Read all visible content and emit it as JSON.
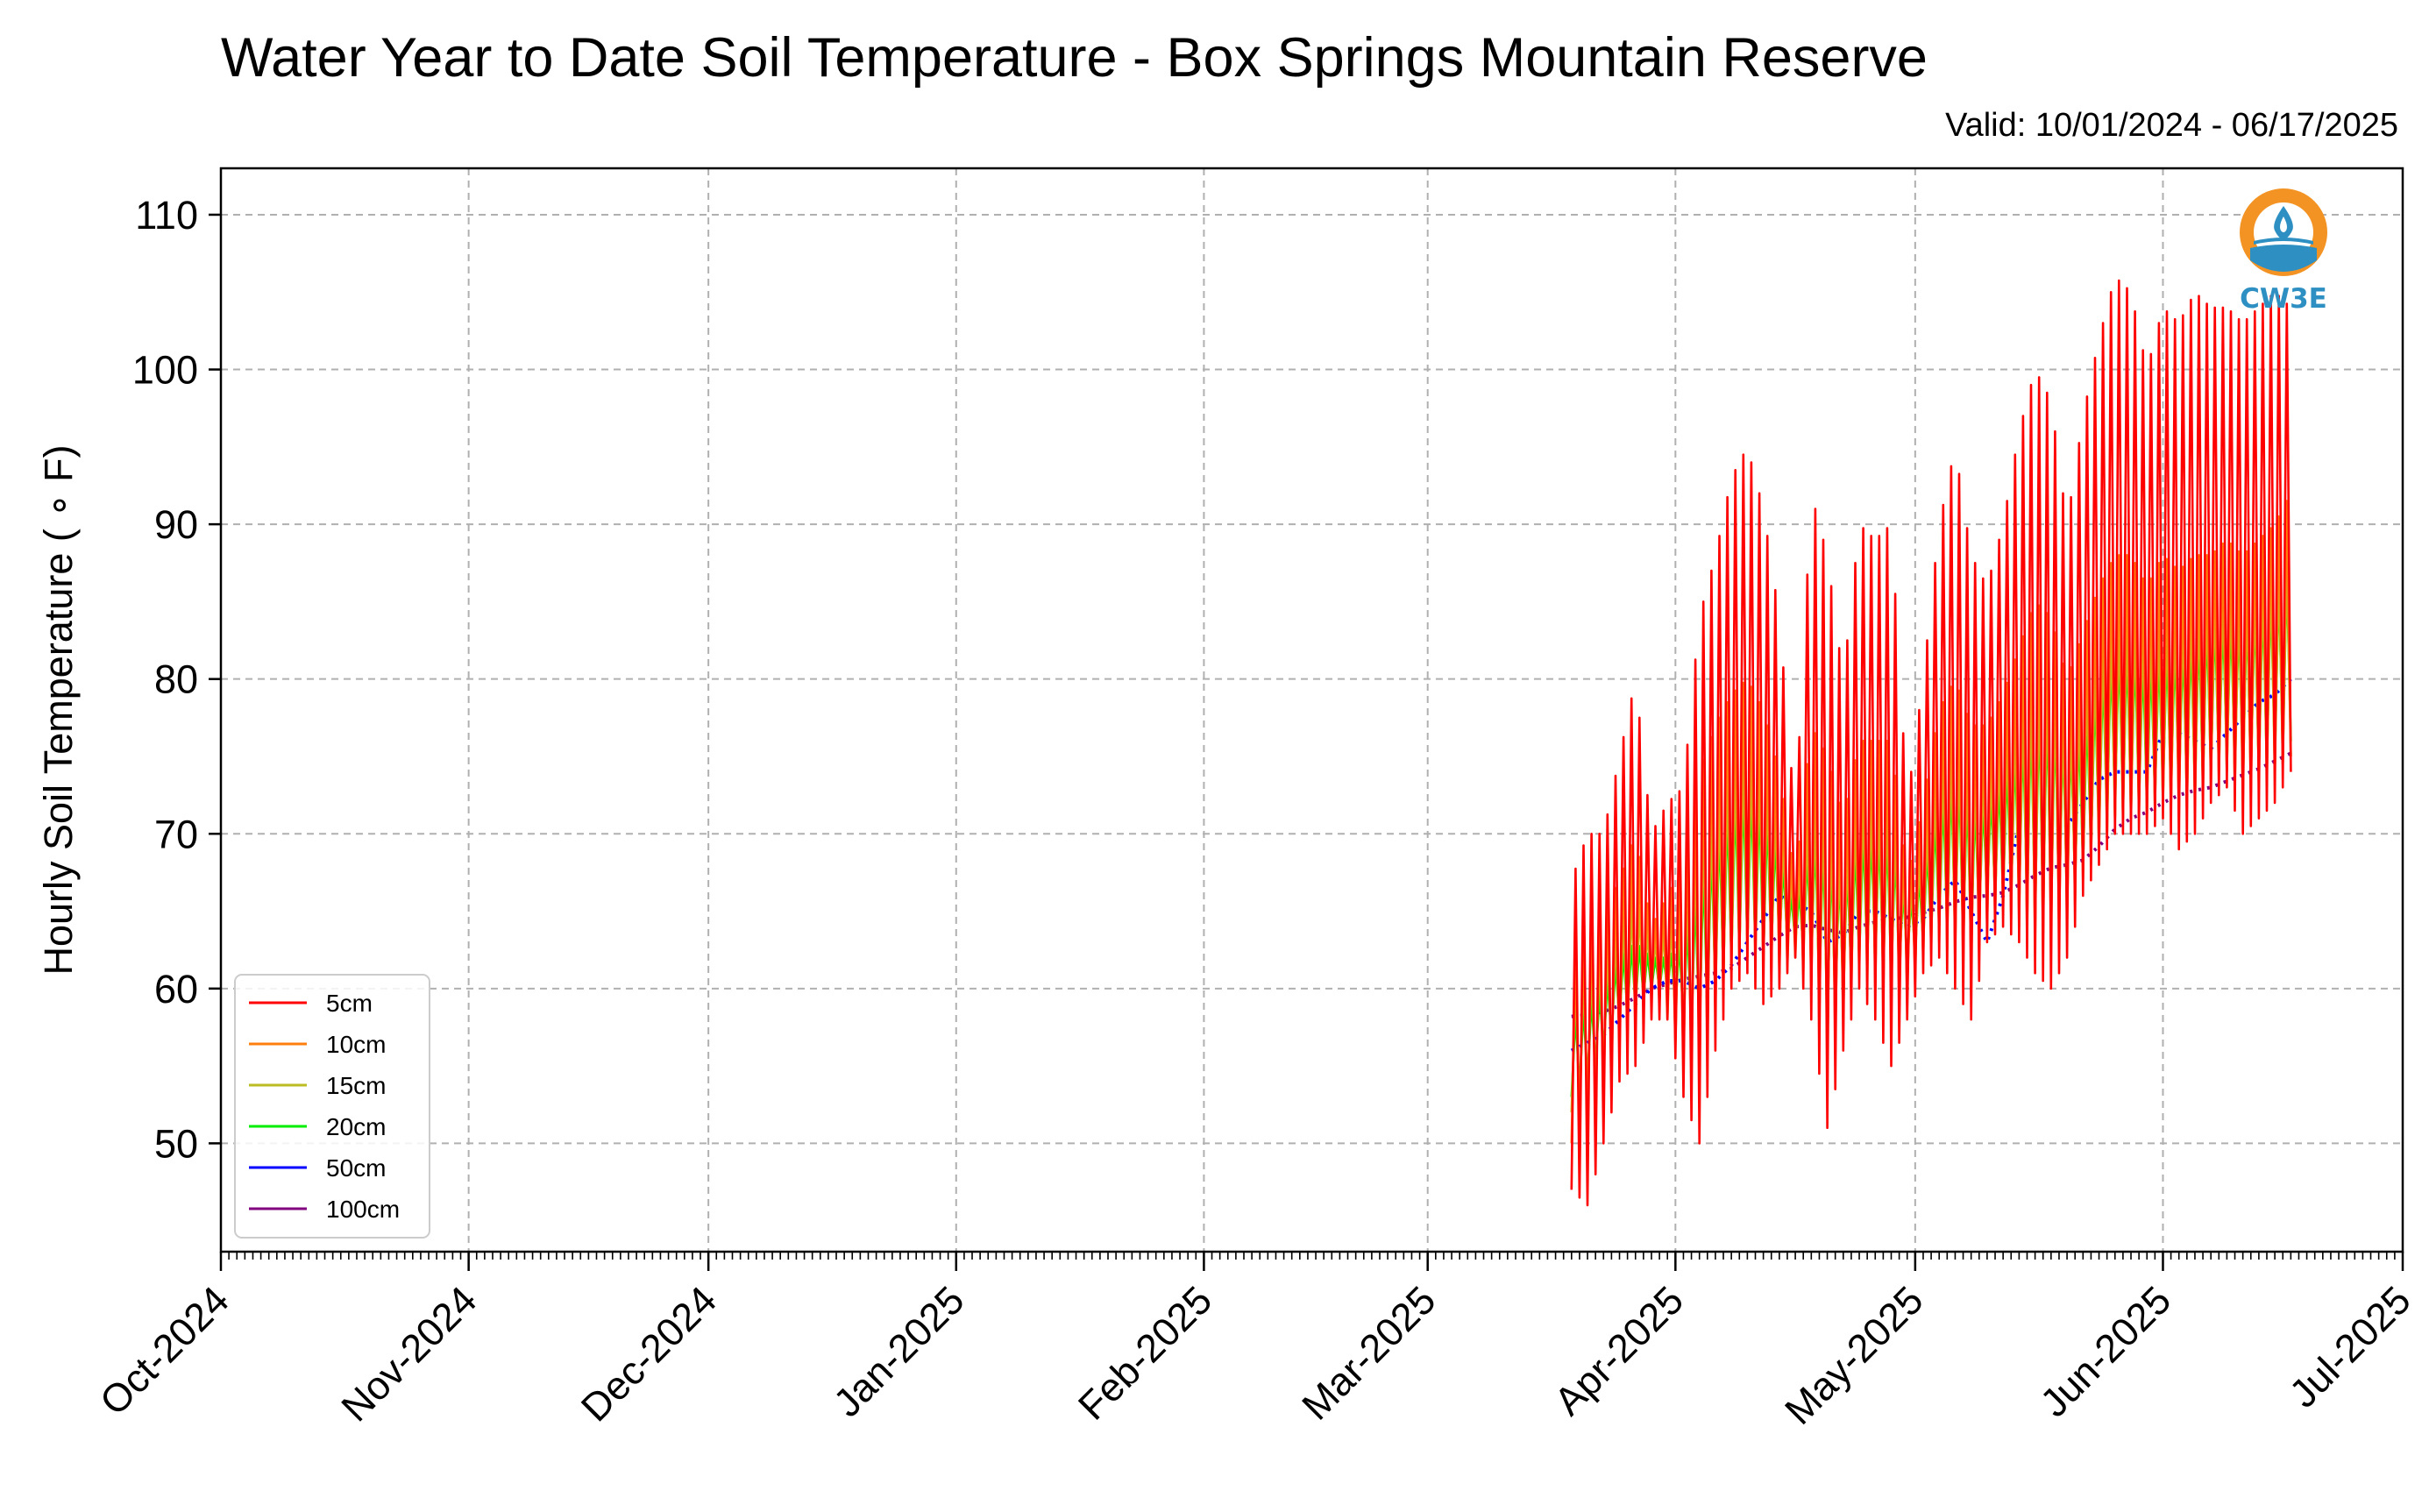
{
  "colors": {
    "5cm": "#ff0000",
    "10cm": "#ff7f0e",
    "15cm": "#bcbd22",
    "20cm": "#00ee00",
    "50cm": "#0000ff",
    "100cm": "#800080",
    "grid": "#b0b0b0",
    "logo_orange": "#f39323",
    "logo_blue": "#2d8fc2"
  },
  "logo": {
    "text": "CW3E",
    "icon": "cw3e-logo-icon"
  },
  "chart_data": {
    "type": "line",
    "title": "Water Year to Date Soil Temperature - Box Springs Mountain Reserve",
    "subtitle": "Valid: 10/01/2024 - 06/17/2025",
    "xlabel": "",
    "ylabel": "Hourly Soil Temperature ( ∘ F)",
    "xlim": [
      "2024-10-01",
      "2025-07-01"
    ],
    "ylim": [
      43,
      113
    ],
    "x_ticks": [
      "Oct-2024",
      "Nov-2024",
      "Dec-2024",
      "Jan-2025",
      "Feb-2025",
      "Mar-2025",
      "Apr-2025",
      "May-2025",
      "Jun-2025",
      "Jul-2025"
    ],
    "y_ticks": [
      50,
      60,
      70,
      80,
      90,
      100,
      110
    ],
    "grid": true,
    "legend_position": "lower-left",
    "daily_series": {
      "dates": [
        "2025-03-19",
        "2025-03-21",
        "2025-03-23",
        "2025-03-25",
        "2025-03-27",
        "2025-03-29",
        "2025-03-31",
        "2025-04-02",
        "2025-04-04",
        "2025-04-06",
        "2025-04-08",
        "2025-04-10",
        "2025-04-12",
        "2025-04-14",
        "2025-04-16",
        "2025-04-18",
        "2025-04-20",
        "2025-04-22",
        "2025-04-24",
        "2025-04-26",
        "2025-04-28",
        "2025-04-30",
        "2025-05-02",
        "2025-05-04",
        "2025-05-06",
        "2025-05-08",
        "2025-05-10",
        "2025-05-12",
        "2025-05-14",
        "2025-05-16",
        "2025-05-18",
        "2025-05-20",
        "2025-05-22",
        "2025-05-24",
        "2025-05-26",
        "2025-05-28",
        "2025-05-30",
        "2025-06-01",
        "2025-06-03",
        "2025-06-05",
        "2025-06-07",
        "2025-06-09",
        "2025-06-11",
        "2025-06-13",
        "2025-06-15",
        "2025-06-17"
      ],
      "series": [
        {
          "name": "5cm",
          "min": [
            47,
            46,
            50,
            54,
            55,
            58,
            58,
            53,
            50,
            56,
            60,
            61,
            59,
            60,
            62,
            58,
            51,
            56,
            60,
            58,
            55,
            58,
            61,
            62,
            60,
            58,
            63,
            64,
            63,
            61,
            60,
            62,
            66,
            68,
            70,
            70,
            70,
            71,
            69,
            70,
            72,
            73,
            70,
            71,
            72,
            74
          ],
          "max": [
            67,
            70,
            70,
            75,
            80,
            70,
            72,
            73,
            84,
            88,
            93,
            95,
            91,
            84,
            71,
            92,
            88,
            80,
            90,
            89,
            90,
            72,
            80,
            90,
            95,
            88,
            86,
            90,
            96,
            100,
            98,
            90,
            97,
            102,
            106,
            105,
            100,
            104,
            103,
            105,
            104,
            104,
            103,
            104,
            105,
            104
          ]
        },
        {
          "name": "10cm",
          "min": [
            50,
            51,
            53,
            56,
            57,
            60,
            58,
            55,
            54,
            58,
            61,
            62,
            61,
            61,
            62,
            60,
            55,
            58,
            61,
            60,
            59,
            60,
            62,
            63,
            62,
            61,
            64,
            65,
            64,
            63,
            63,
            64,
            67,
            69,
            71,
            71,
            71,
            72,
            71,
            72,
            73,
            74,
            72,
            73,
            74,
            75
          ],
          "max": [
            62,
            64,
            65,
            67,
            70,
            64,
            66,
            68,
            74,
            77,
            79,
            80,
            78,
            74,
            67,
            77,
            75,
            71,
            76,
            76,
            76,
            67,
            72,
            78,
            80,
            77,
            77,
            79,
            82,
            85,
            84,
            80,
            83,
            86,
            88,
            88,
            86,
            88,
            87,
            88,
            88,
            89,
            88,
            89,
            90,
            92
          ]
        },
        {
          "name": "15cm",
          "min": [
            52,
            53,
            55,
            57,
            58,
            60,
            59,
            57,
            56,
            59,
            62,
            63,
            62,
            62,
            63,
            61,
            57,
            59,
            62,
            61,
            60,
            61,
            63,
            64,
            63,
            62,
            65,
            66,
            65,
            64,
            64,
            65,
            68,
            69,
            71,
            71,
            72,
            72,
            72,
            72,
            74,
            74,
            73,
            74,
            74,
            75
          ],
          "max": [
            60,
            61,
            62,
            64,
            66,
            63,
            64,
            65,
            70,
            72,
            74,
            75,
            74,
            71,
            66,
            72,
            71,
            68,
            72,
            72,
            72,
            66,
            69,
            74,
            76,
            74,
            74,
            76,
            78,
            80,
            80,
            77,
            79,
            82,
            84,
            84,
            83,
            84,
            84,
            85,
            85,
            86,
            85,
            86,
            87,
            88
          ]
        },
        {
          "name": "20cm",
          "min": [
            53,
            54,
            56,
            58,
            59,
            60,
            60,
            58,
            57,
            60,
            62,
            63,
            62,
            63,
            63,
            62,
            58,
            60,
            62,
            62,
            61,
            62,
            63,
            64,
            64,
            63,
            66,
            66,
            66,
            65,
            65,
            66,
            68,
            70,
            72,
            72,
            72,
            73,
            73,
            73,
            74,
            75,
            74,
            74,
            75,
            76
          ],
          "max": [
            58,
            59,
            60,
            62,
            63,
            62,
            62,
            63,
            67,
            70,
            72,
            73,
            72,
            69,
            65,
            70,
            69,
            67,
            70,
            70,
            70,
            65,
            68,
            72,
            74,
            72,
            72,
            74,
            76,
            78,
            78,
            76,
            77,
            80,
            82,
            82,
            81,
            82,
            82,
            83,
            84,
            84,
            84,
            85,
            86,
            87
          ]
        },
        {
          "name": "50cm",
          "min": [
            56,
            56.5,
            57,
            58,
            59,
            60,
            60.5,
            60.5,
            60,
            60.5,
            61.5,
            63,
            64.5,
            66,
            65.5,
            65,
            63,
            63.5,
            65,
            65,
            64.5,
            64,
            64.5,
            66,
            67,
            65,
            63,
            66,
            70.5,
            70.5,
            70,
            70.5,
            72,
            73.5,
            74,
            74,
            74,
            76.5,
            76.5,
            76,
            75.5,
            76.5,
            77.5,
            78.5,
            79,
            80
          ],
          "max": [
            56,
            56.5,
            57,
            58,
            59,
            60,
            60.5,
            60.5,
            60,
            60.5,
            61.5,
            63,
            64.5,
            66,
            65.5,
            65,
            63,
            63.5,
            65,
            65,
            64.5,
            64,
            64.5,
            66,
            67,
            65,
            63,
            66,
            70.5,
            70.5,
            70,
            70.5,
            72,
            73.5,
            74,
            74,
            74,
            76.5,
            76.5,
            76,
            75.5,
            76.5,
            77.5,
            78.5,
            79,
            80
          ]
        },
        {
          "name": "100cm",
          "min": [
            58.2,
            58.3,
            58.5,
            58.9,
            59.4,
            60,
            60.3,
            60.6,
            60.8,
            61,
            61.3,
            62,
            62.7,
            63.4,
            64,
            64.1,
            63.8,
            63.6,
            64,
            64.3,
            64.5,
            64.6,
            64.9,
            65.2,
            65.6,
            65.9,
            66,
            66.2,
            66.7,
            67.3,
            67.8,
            68,
            68.3,
            69.2,
            70.3,
            71,
            71.4,
            72,
            72.5,
            72.8,
            73,
            73.4,
            73.8,
            74.2,
            74.7,
            75.2
          ],
          "max": [
            58.2,
            58.3,
            58.5,
            58.9,
            59.4,
            60,
            60.3,
            60.6,
            60.8,
            61,
            61.3,
            62,
            62.7,
            63.4,
            64,
            64.1,
            63.8,
            63.6,
            64,
            64.3,
            64.5,
            64.6,
            64.9,
            65.2,
            65.6,
            65.9,
            66,
            66.2,
            66.7,
            67.3,
            67.8,
            68,
            68.3,
            69.2,
            70.3,
            71,
            71.4,
            72,
            72.5,
            72.8,
            73,
            73.4,
            73.8,
            74.2,
            74.7,
            75.2
          ]
        }
      ]
    },
    "legend": [
      "5cm",
      "10cm",
      "15cm",
      "20cm",
      "50cm",
      "100cm"
    ]
  }
}
